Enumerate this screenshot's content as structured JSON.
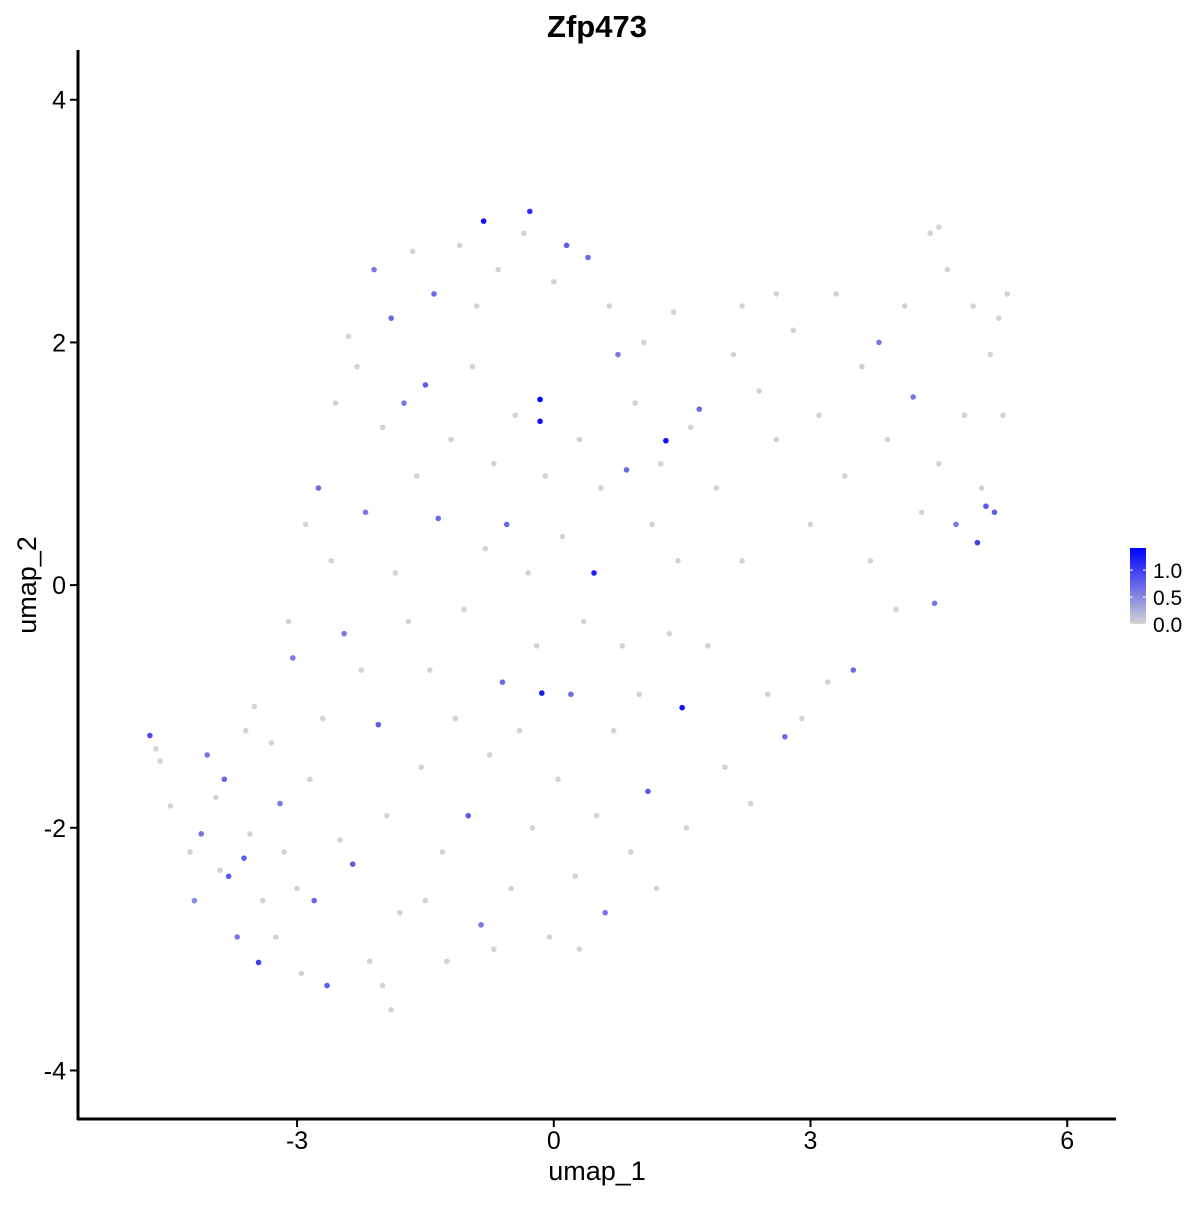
{
  "chart_data": {
    "type": "scatter",
    "title": "Zfp473",
    "x_label": "umap_1",
    "y_label": "umap_2",
    "x": [
      -4.72,
      -4.65,
      -4.6,
      -4.48,
      -4.25,
      -4.2,
      -4.12,
      -4.05,
      -3.95,
      -3.9,
      -3.85,
      -3.8,
      -3.7,
      -3.62,
      -3.55,
      -3.5,
      -3.45,
      -3.4,
      -3.3,
      -3.25,
      -3.2,
      -3.15,
      -3.1,
      -3.05,
      -3.0,
      -2.95,
      -2.9,
      -2.85,
      -2.8,
      -2.75,
      -2.7,
      -2.65,
      -2.6,
      -2.55,
      -2.5,
      -2.45,
      -2.4,
      -2.35,
      -2.3,
      -2.25,
      -2.2,
      -2.15,
      -2.1,
      -2.05,
      -2.0,
      -1.95,
      -1.9,
      -1.85,
      -1.8,
      -1.75,
      -1.7,
      -1.65,
      -1.6,
      -1.55,
      -1.5,
      -1.45,
      -1.4,
      -1.35,
      -1.3,
      -1.25,
      -1.2,
      -1.15,
      -1.1,
      -1.05,
      -1.0,
      -0.95,
      -0.9,
      -0.85,
      -0.82,
      -0.8,
      -0.75,
      -0.7,
      -0.65,
      -0.6,
      -0.55,
      -0.5,
      -0.45,
      -0.4,
      -0.35,
      -0.3,
      -0.28,
      -0.25,
      -0.2,
      -0.16,
      -0.16,
      -0.14,
      -0.1,
      -0.05,
      0.0,
      0.05,
      0.1,
      0.15,
      0.2,
      0.25,
      0.3,
      0.35,
      0.4,
      0.47,
      0.5,
      0.55,
      0.6,
      0.65,
      0.7,
      0.75,
      0.8,
      0.85,
      0.9,
      0.95,
      1.0,
      1.05,
      1.1,
      1.15,
      1.2,
      1.25,
      1.31,
      1.35,
      1.4,
      1.45,
      1.5,
      1.55,
      1.6,
      1.7,
      1.8,
      1.9,
      2.0,
      2.1,
      2.2,
      2.3,
      2.4,
      2.5,
      2.6,
      2.7,
      2.8,
      2.9,
      3.0,
      3.1,
      3.2,
      3.3,
      3.4,
      3.5,
      3.6,
      3.7,
      3.8,
      3.9,
      4.0,
      4.1,
      4.2,
      4.3,
      4.4,
      4.45,
      4.5,
      4.6,
      4.7,
      4.8,
      4.9,
      4.95,
      5.0,
      5.05,
      5.1,
      5.15,
      5.2,
      5.3,
      5.25,
      -2.0,
      -3.6,
      -1.5,
      -0.7,
      0.3,
      -1.9,
      4.5,
      2.6,
      2.2
    ],
    "y": [
      -1.24,
      -1.35,
      -1.45,
      -1.82,
      -2.2,
      -2.6,
      -2.05,
      -1.4,
      -1.75,
      -2.35,
      -1.6,
      -2.4,
      -2.9,
      -2.25,
      -2.05,
      -1.0,
      -3.11,
      -2.6,
      -1.3,
      -2.9,
      -1.8,
      -2.2,
      -0.3,
      -0.6,
      -2.5,
      -3.2,
      0.5,
      -1.6,
      -2.6,
      0.8,
      -1.1,
      -3.3,
      0.2,
      1.5,
      -2.1,
      -0.4,
      2.05,
      -2.3,
      1.8,
      -0.7,
      0.6,
      -3.1,
      2.6,
      -1.15,
      1.3,
      -1.9,
      2.2,
      0.1,
      -2.7,
      1.5,
      -0.3,
      2.75,
      0.9,
      -1.5,
      1.65,
      -0.7,
      2.4,
      0.55,
      -2.2,
      -3.1,
      1.2,
      -1.1,
      2.8,
      -0.2,
      -1.9,
      1.8,
      2.3,
      -2.8,
      3.0,
      0.3,
      -1.4,
      1.0,
      2.6,
      -0.8,
      0.5,
      -2.5,
      1.4,
      -1.2,
      2.9,
      0.1,
      3.08,
      -2.0,
      -0.5,
      1.53,
      1.35,
      -0.89,
      0.9,
      -2.9,
      2.5,
      -1.6,
      0.4,
      2.8,
      -0.9,
      -2.4,
      1.2,
      -0.3,
      2.7,
      0.1,
      -1.9,
      0.8,
      -2.7,
      2.3,
      -1.2,
      1.9,
      -0.5,
      0.95,
      -2.2,
      1.5,
      -0.9,
      2.0,
      -1.7,
      0.5,
      -2.5,
      1.0,
      1.19,
      -0.4,
      2.25,
      0.2,
      -1.01,
      -2.0,
      1.3,
      1.45,
      -0.5,
      0.8,
      -1.5,
      1.9,
      0.2,
      -1.8,
      1.6,
      -0.9,
      1.2,
      -1.25,
      2.1,
      -1.1,
      0.5,
      1.4,
      -0.8,
      2.4,
      0.9,
      -0.7,
      1.8,
      0.2,
      2.0,
      1.2,
      -0.2,
      2.3,
      1.55,
      0.6,
      2.9,
      -0.15,
      1.0,
      2.6,
      0.5,
      1.4,
      2.3,
      0.35,
      0.8,
      0.65,
      1.9,
      0.6,
      2.2,
      2.4,
      1.4,
      -3.3,
      -1.2,
      -2.6,
      -3.0,
      -3.0,
      -3.5,
      2.95,
      2.4,
      2.3
    ],
    "values": [
      0.9,
      0,
      0,
      0,
      0,
      0.5,
      0.6,
      0.6,
      0,
      0,
      0.7,
      0.8,
      0.6,
      0.8,
      0,
      0,
      1.0,
      0,
      0,
      0,
      0.6,
      0,
      0,
      0.6,
      0,
      0,
      0,
      0,
      0.7,
      0.7,
      0,
      0.8,
      0,
      0,
      0,
      0.6,
      0,
      0.8,
      0,
      0,
      0.6,
      0,
      0.6,
      0.8,
      0,
      0,
      0.7,
      0,
      0,
      0.6,
      0,
      0,
      0,
      0,
      0.8,
      0,
      0.7,
      0.7,
      0,
      0,
      0,
      0,
      0,
      0,
      0.8,
      0,
      0,
      0.6,
      1.3,
      0,
      0,
      0,
      0,
      0.7,
      0.7,
      0,
      0,
      0,
      0,
      0,
      1.1,
      0,
      0,
      1.4,
      1.3,
      1.25,
      0,
      0,
      0,
      0,
      0,
      0.8,
      0.7,
      0,
      0,
      0,
      0.7,
      1.2,
      0,
      0,
      0.6,
      0,
      0,
      0.6,
      0,
      0.7,
      0,
      0,
      0,
      0,
      0.8,
      0,
      0,
      0,
      1.3,
      0,
      0,
      0,
      1.3,
      0,
      0,
      0.7,
      0,
      0,
      0,
      0,
      0,
      0,
      0,
      0,
      0,
      0.7,
      0,
      0,
      0,
      0,
      0,
      0,
      0,
      0.7,
      0,
      0,
      0.6,
      0,
      0,
      0,
      0.6,
      0,
      0,
      0.6,
      0,
      0,
      0.6,
      0,
      0,
      1.0,
      0,
      0.8,
      0,
      0.8,
      0,
      0,
      0,
      0,
      0,
      0,
      0,
      0,
      0,
      0,
      0,
      0
    ],
    "xlim": [
      -5.56,
      6.57
    ],
    "ylim": [
      -4.4,
      4.41
    ],
    "xticks": [
      -3,
      0,
      3,
      6
    ],
    "yticks": [
      -4,
      -2,
      0,
      2,
      4
    ],
    "grid": false,
    "colorbar": {
      "lim": [
        0,
        1.41
      ],
      "ticks": [
        {
          "value": 0,
          "label": "0.0"
        },
        0.5,
        {
          "value": 1,
          "label": "1.0"
        }
      ],
      "low_color": "#d3d3d3",
      "high_color": "#0000ff"
    }
  }
}
